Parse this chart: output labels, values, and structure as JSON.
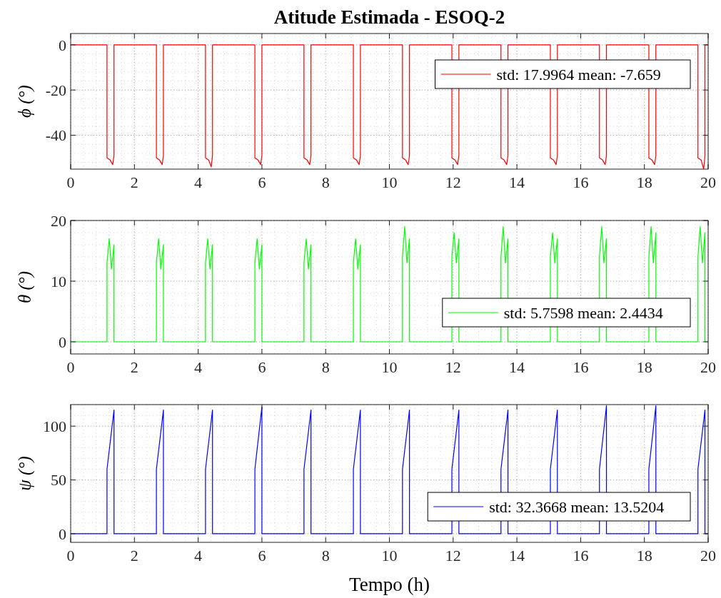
{
  "chart_data": [
    {
      "type": "line",
      "title": "Atitude Estimada - ESOQ-2",
      "ylabel": "ϕ (°)",
      "xlim": [
        0,
        20
      ],
      "xticks": [
        0,
        2,
        4,
        6,
        8,
        10,
        12,
        14,
        16,
        18,
        20
      ],
      "ylim": [
        -55,
        5
      ],
      "yticks": [
        -40,
        -20,
        0
      ],
      "grid": true,
      "legend": "top right",
      "series": [
        {
          "name": "std: 17.9964 mean: -7.659",
          "color": "#ff0000",
          "x": [
            0,
            1.14,
            1.14,
            1.24,
            1.32,
            1.36,
            1.36,
            2.69,
            2.69,
            2.79,
            2.87,
            2.91,
            2.91,
            4.23,
            4.23,
            4.33,
            4.41,
            4.45,
            4.45,
            5.78,
            5.78,
            5.88,
            5.96,
            6.0,
            6.0,
            7.32,
            7.32,
            7.42,
            7.5,
            7.54,
            7.54,
            8.87,
            8.87,
            8.97,
            9.05,
            9.09,
            9.09,
            10.41,
            10.41,
            10.51,
            10.59,
            10.63,
            10.63,
            11.96,
            11.96,
            12.06,
            12.14,
            12.18,
            12.18,
            13.5,
            13.5,
            13.6,
            13.68,
            13.72,
            13.72,
            15.05,
            15.05,
            15.15,
            15.23,
            15.27,
            15.27,
            16.59,
            16.59,
            16.69,
            16.77,
            16.81,
            16.81,
            18.14,
            18.14,
            18.24,
            18.32,
            18.36,
            18.36,
            19.68,
            19.68,
            19.78,
            19.86,
            19.9,
            19.9,
            20
          ],
          "values": [
            0,
            0,
            -50,
            -51,
            -53,
            -49,
            0,
            0,
            -50,
            -51,
            -53,
            -49,
            0,
            0,
            -50,
            -51,
            -54,
            -49,
            0,
            0,
            -50,
            -51,
            -53,
            -49,
            0,
            0,
            -50,
            -51,
            -53,
            -49,
            0,
            0,
            -50,
            -51,
            -53,
            -49,
            0,
            0,
            -50,
            -51,
            -53,
            -49,
            0,
            0,
            -50,
            -51,
            -53,
            -49,
            0,
            0,
            -50,
            -51,
            -53,
            -49,
            0,
            0,
            -50,
            -51,
            -53,
            -49,
            0,
            0,
            -50,
            -51,
            -53,
            -49,
            0,
            0,
            -50,
            -51,
            -53,
            -49,
            0,
            0,
            -50,
            -51,
            -55,
            -49,
            0,
            0
          ]
        }
      ]
    },
    {
      "type": "line",
      "ylabel": "θ (°)",
      "xlim": [
        0,
        20
      ],
      "xticks": [
        0,
        2,
        4,
        6,
        8,
        10,
        12,
        14,
        16,
        18,
        20
      ],
      "ylim": [
        -2,
        20
      ],
      "yticks": [
        0,
        10,
        20
      ],
      "grid": true,
      "legend": "bottom right",
      "series": [
        {
          "name": "std: 5.7598 mean: 2.4434",
          "color": "#00ff00",
          "x": [
            0,
            1.14,
            1.14,
            1.21,
            1.28,
            1.36,
            1.36,
            2.69,
            2.69,
            2.76,
            2.83,
            2.91,
            2.91,
            4.23,
            4.23,
            4.3,
            4.37,
            4.45,
            4.45,
            5.78,
            5.78,
            5.85,
            5.92,
            6.0,
            6.0,
            7.32,
            7.32,
            7.39,
            7.46,
            7.54,
            7.54,
            8.87,
            8.87,
            8.94,
            9.01,
            9.09,
            9.09,
            10.41,
            10.41,
            10.48,
            10.55,
            10.63,
            10.63,
            11.96,
            11.96,
            12.03,
            12.1,
            12.18,
            12.18,
            13.5,
            13.5,
            13.57,
            13.64,
            13.72,
            13.72,
            15.05,
            15.05,
            15.12,
            15.19,
            15.27,
            15.27,
            16.59,
            16.59,
            16.66,
            16.73,
            16.81,
            16.81,
            18.14,
            18.14,
            18.21,
            18.28,
            18.36,
            18.36,
            19.68,
            19.68,
            19.75,
            19.82,
            19.9,
            19.9,
            20
          ],
          "values": [
            0,
            0,
            13,
            17,
            12,
            16,
            0,
            0,
            13,
            17,
            12,
            16,
            0,
            0,
            13,
            17,
            12,
            16,
            0,
            0,
            13,
            17,
            12,
            16,
            0,
            0,
            13,
            17,
            12,
            16,
            0,
            0,
            13,
            17,
            12,
            16,
            0,
            0,
            14,
            19,
            13,
            17,
            0,
            0,
            14,
            18,
            13,
            17,
            0,
            0,
            14,
            19,
            13,
            17,
            0,
            0,
            14,
            18,
            13,
            17,
            0,
            0,
            14,
            19,
            13,
            17,
            0,
            0,
            14,
            19,
            13,
            18,
            0,
            0,
            14,
            19,
            13,
            18,
            0,
            0
          ]
        }
      ]
    },
    {
      "type": "line",
      "ylabel": "ψ (°)",
      "xlabel": "Tempo (h)",
      "xlim": [
        0,
        20
      ],
      "xticks": [
        0,
        2,
        4,
        6,
        8,
        10,
        12,
        14,
        16,
        18,
        20
      ],
      "ylim": [
        -8,
        120
      ],
      "yticks": [
        0,
        50,
        100
      ],
      "grid": true,
      "legend": "bottom right",
      "series": [
        {
          "name": "std: 32.3668 mean: 13.5204",
          "color": "#0000ff",
          "x": [
            0,
            1.14,
            1.14,
            1.36,
            1.36,
            2.69,
            2.69,
            2.91,
            2.91,
            4.23,
            4.23,
            4.45,
            4.45,
            5.78,
            5.78,
            6.0,
            6.0,
            7.32,
            7.32,
            7.54,
            7.54,
            8.87,
            8.87,
            9.09,
            9.09,
            10.41,
            10.41,
            10.63,
            10.63,
            11.96,
            11.96,
            12.18,
            12.18,
            13.5,
            13.5,
            13.72,
            13.72,
            15.05,
            15.05,
            15.27,
            15.27,
            16.59,
            16.59,
            16.81,
            16.81,
            18.14,
            18.14,
            18.36,
            18.36,
            19.68,
            19.68,
            19.9,
            19.9,
            20
          ],
          "values": [
            0,
            0,
            60,
            115,
            0,
            0,
            60,
            115,
            0,
            0,
            60,
            115,
            0,
            0,
            60,
            118,
            0,
            0,
            60,
            115,
            0,
            0,
            60,
            115,
            0,
            0,
            60,
            115,
            0,
            0,
            60,
            115,
            0,
            0,
            60,
            115,
            0,
            0,
            60,
            115,
            0,
            0,
            60,
            119,
            0,
            0,
            60,
            119,
            0,
            0,
            60,
            115,
            0,
            0
          ]
        }
      ]
    }
  ]
}
